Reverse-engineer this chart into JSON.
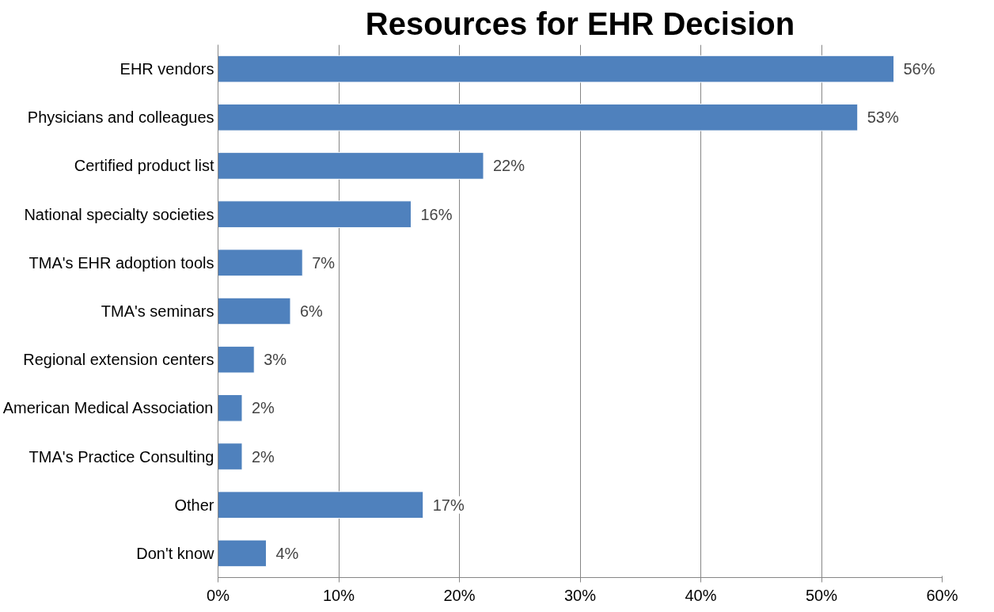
{
  "chart_data": {
    "type": "bar",
    "orientation": "horizontal",
    "title": "Resources for EHR Decision",
    "categories": [
      "EHR vendors",
      "Physicians and colleagues",
      "Certified product list",
      "National specialty societies",
      "TMA's EHR adoption tools",
      "TMA's seminars",
      "Regional extension centers",
      "American Medical Association",
      "TMA's Practice Consulting",
      "Other",
      "Don't know"
    ],
    "values": [
      56,
      53,
      22,
      16,
      7,
      6,
      3,
      2,
      2,
      17,
      4
    ],
    "value_labels": [
      "56%",
      "53%",
      "22%",
      "16%",
      "7%",
      "6%",
      "3%",
      "2%",
      "2%",
      "17%",
      "4%"
    ],
    "color": "#4f81bd",
    "xlim": [
      0,
      60
    ],
    "xticks": [
      {
        "value": 0,
        "label": "0%"
      },
      {
        "value": 10,
        "label": "10%"
      },
      {
        "value": 20,
        "label": "20%"
      },
      {
        "value": 30,
        "label": "30%"
      },
      {
        "value": 40,
        "label": "40%"
      },
      {
        "value": 50,
        "label": "50%"
      },
      {
        "value": 60,
        "label": "60%"
      }
    ],
    "grid": "x"
  }
}
